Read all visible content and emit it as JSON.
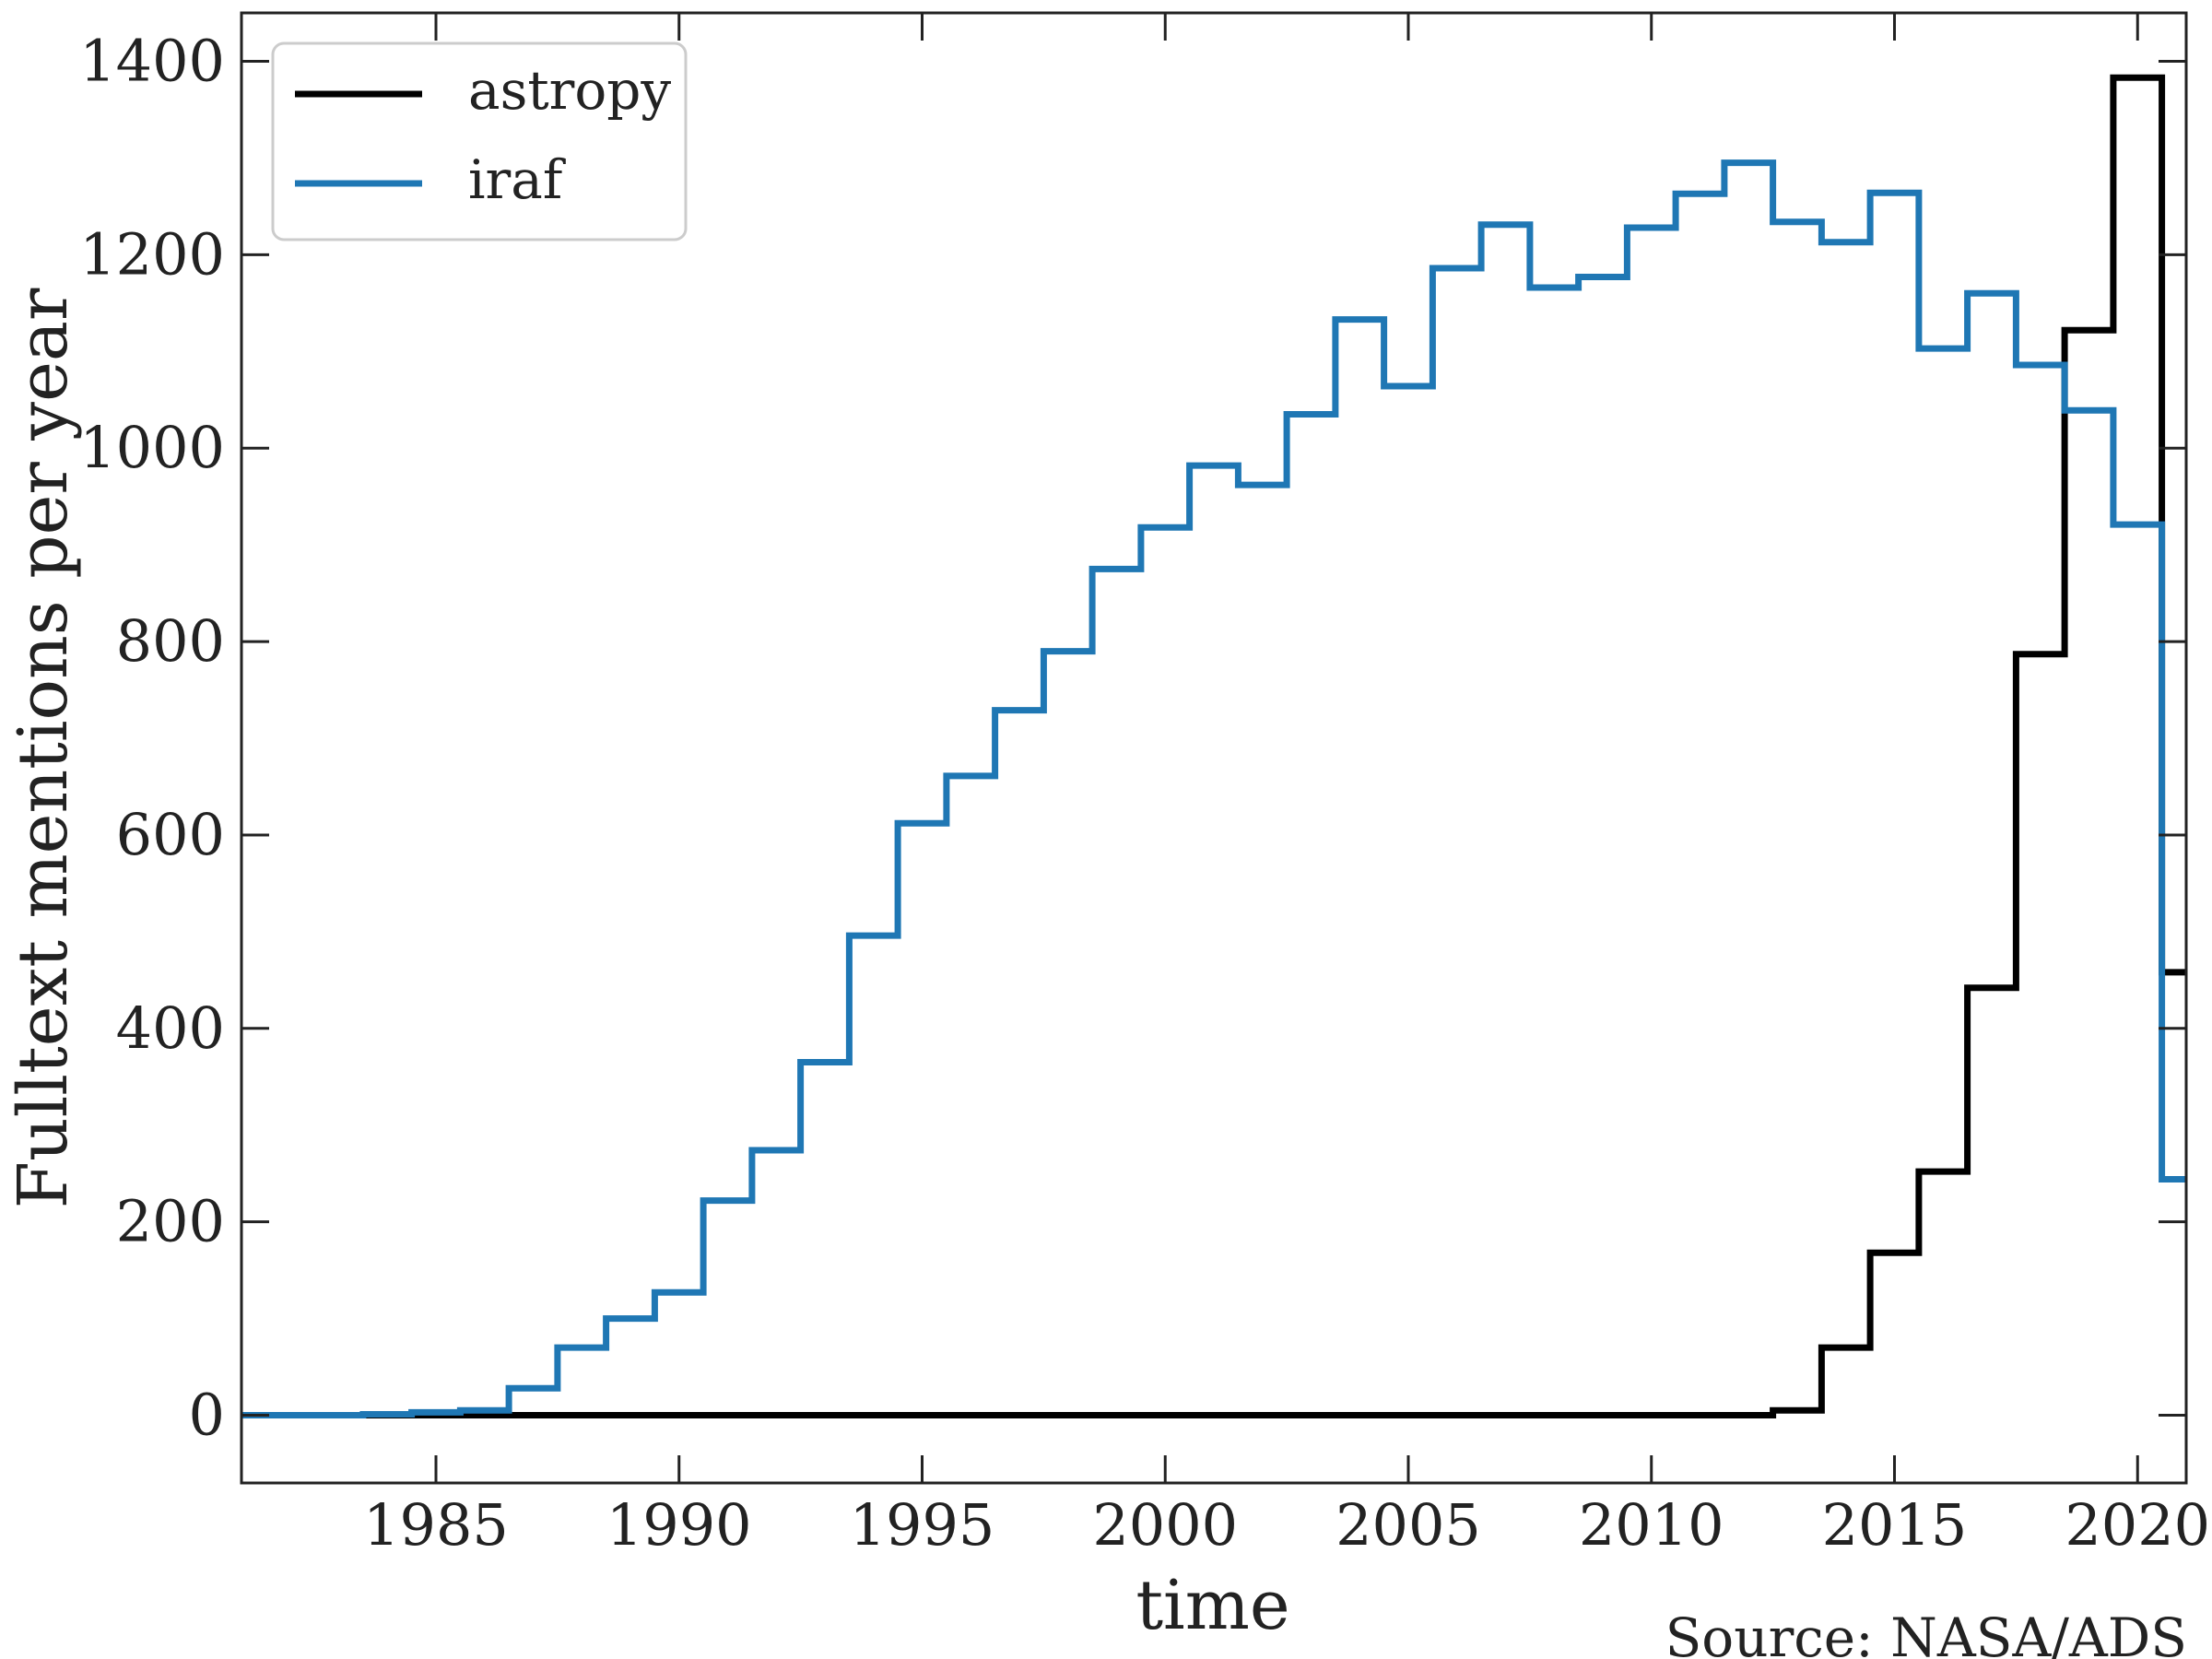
{
  "chart_data": {
    "type": "line",
    "title": "",
    "xlabel": "time",
    "ylabel": "Fulltext mentions per year",
    "source_note": "Source: NASA/ADS",
    "xlim": [
      1981,
      2021
    ],
    "ylim": [
      -70,
      1450
    ],
    "x_ticks": [
      1985,
      1990,
      1995,
      2000,
      2005,
      2010,
      2015,
      2020
    ],
    "y_ticks": [
      0,
      200,
      400,
      600,
      800,
      1000,
      1200,
      1400
    ],
    "x_tick_labels": [
      "1985",
      "1990",
      "1995",
      "2000",
      "2005",
      "2010",
      "2015",
      "2020"
    ],
    "y_tick_labels": [
      "0",
      "200",
      "400",
      "600",
      "800",
      "1000",
      "1200",
      "1400"
    ],
    "grid": false,
    "legend_position": "top-left",
    "step": "mid",
    "x": [
      1981,
      1982,
      1983,
      1984,
      1985,
      1986,
      1987,
      1988,
      1989,
      1990,
      1991,
      1992,
      1993,
      1994,
      1995,
      1996,
      1997,
      1998,
      1999,
      2000,
      2001,
      2002,
      2003,
      2004,
      2005,
      2006,
      2007,
      2008,
      2009,
      2010,
      2011,
      2012,
      2013,
      2014,
      2015,
      2016,
      2017,
      2018,
      2019,
      2020,
      2021
    ],
    "series": [
      {
        "name": "astropy",
        "color": "#000000",
        "values": [
          0,
          0,
          0,
          0,
          0,
          0,
          0,
          0,
          0,
          0,
          0,
          0,
          0,
          0,
          0,
          0,
          0,
          0,
          0,
          0,
          0,
          0,
          0,
          0,
          0,
          0,
          0,
          0,
          0,
          0,
          0,
          0,
          5,
          70,
          168,
          252,
          442,
          787,
          1122,
          1383,
          458
        ]
      },
      {
        "name": "iraf",
        "color": "#1f77b4",
        "values": [
          0,
          0,
          0,
          1,
          3,
          5,
          28,
          70,
          100,
          127,
          222,
          274,
          365,
          496,
          612,
          661,
          729,
          790,
          875,
          918,
          982,
          962,
          1035,
          1133,
          1064,
          1186,
          1231,
          1166,
          1177,
          1228,
          1263,
          1295,
          1234,
          1213,
          1264,
          1103,
          1160,
          1086,
          1039,
          921,
          244
        ]
      }
    ]
  }
}
